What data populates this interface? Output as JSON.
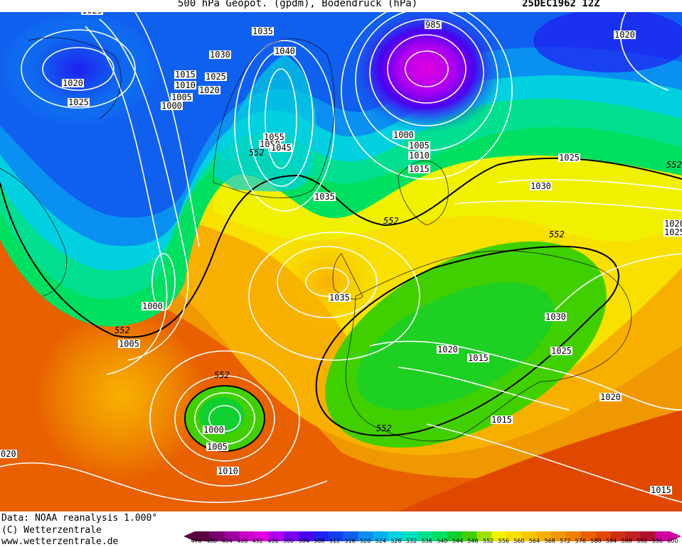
{
  "title": {
    "left": "500 hPa Geopot. (gpdm), Bodendruck (hPa)",
    "date": "25DEC1962 12Z"
  },
  "isobar_labels": [
    "1025",
    "1035",
    "1030",
    "1040",
    "985",
    "1020",
    "1015",
    "1025",
    "1010",
    "1020",
    "1005",
    "1000",
    "1020",
    "1025",
    "1055",
    "1050",
    "1045",
    "1000",
    "1005",
    "1010",
    "1015",
    "1035",
    "1025",
    "1030",
    "1000",
    "1005",
    "1035",
    "1030",
    "1020",
    "1015",
    "1025",
    "1000",
    "1005",
    "1010",
    "1015",
    "1020",
    "1015",
    "020",
    "1020",
    "1025"
  ],
  "contour_labels": [
    "552",
    "552",
    "552",
    "552",
    "552",
    "552",
    "552"
  ],
  "footer": {
    "data_line": "Data: NOAA reanalysis 1.000°",
    "copyright_line": "(C) Wetterzentrale",
    "url_line": "www.wetterzentrale.de"
  },
  "colorbar": {
    "ticks": [
      "476",
      "480",
      "484",
      "488",
      "492",
      "496",
      "500",
      "504",
      "508",
      "512",
      "516",
      "520",
      "524",
      "528",
      "532",
      "536",
      "540",
      "544",
      "548",
      "552",
      "556",
      "560",
      "564",
      "568",
      "572",
      "576",
      "580",
      "584",
      "588",
      "592",
      "596",
      "600"
    ],
    "colors": [
      "#5a0040",
      "#7a0070",
      "#a000a0",
      "#c800c8",
      "#e000e0",
      "#b000f0",
      "#7a00f0",
      "#4a00f0",
      "#2020f0",
      "#1040f0",
      "#1060f0",
      "#0a90f0",
      "#00b0f0",
      "#00d0e0",
      "#00e0c0",
      "#00e090",
      "#00e060",
      "#10d030",
      "#40d000",
      "#a0e000",
      "#f0f000",
      "#f8e000",
      "#f8c800",
      "#f8b000",
      "#f09800",
      "#f08000",
      "#e86000",
      "#e04800",
      "#d03010",
      "#c02020",
      "#b01030",
      "#d000a0"
    ]
  }
}
